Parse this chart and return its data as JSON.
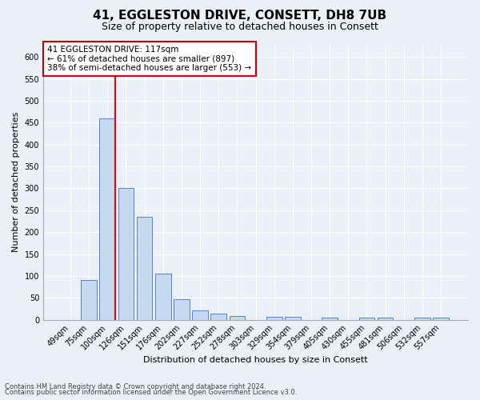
{
  "title": "41, EGGLESTON DRIVE, CONSETT, DH8 7UB",
  "subtitle": "Size of property relative to detached houses in Consett",
  "xlabel": "Distribution of detached houses by size in Consett",
  "ylabel": "Number of detached properties",
  "bar_labels": [
    "49sqm",
    "75sqm",
    "100sqm",
    "126sqm",
    "151sqm",
    "176sqm",
    "202sqm",
    "227sqm",
    "252sqm",
    "278sqm",
    "303sqm",
    "329sqm",
    "354sqm",
    "379sqm",
    "405sqm",
    "430sqm",
    "455sqm",
    "481sqm",
    "506sqm",
    "532sqm",
    "557sqm"
  ],
  "bar_values": [
    0,
    90,
    460,
    300,
    235,
    105,
    47,
    22,
    13,
    8,
    0,
    6,
    6,
    0,
    5,
    0,
    5,
    5,
    0,
    5,
    5
  ],
  "bar_color": "#c5d9f0",
  "bar_edge_color": "#4472c4",
  "annotation_line1": "41 EGGLESTON DRIVE: 117sqm",
  "annotation_line2": "← 61% of detached houses are smaller (897)",
  "annotation_line3": "38% of semi-detached houses are larger (553) →",
  "annotation_box_color": "#ffffff",
  "annotation_box_edge": "#cc0000",
  "ylim": [
    0,
    630
  ],
  "yticks": [
    0,
    50,
    100,
    150,
    200,
    250,
    300,
    350,
    400,
    450,
    500,
    550,
    600
  ],
  "footnote1": "Contains HM Land Registry data © Crown copyright and database right 2024.",
  "footnote2": "Contains public sector information licensed under the Open Government Licence v3.0.",
  "bg_color": "#eaf0f8",
  "grid_color": "#ffffff",
  "title_fontsize": 11,
  "subtitle_fontsize": 9,
  "label_fontsize": 8,
  "tick_fontsize": 7,
  "footnote_fontsize": 6,
  "annot_fontsize": 7.5
}
